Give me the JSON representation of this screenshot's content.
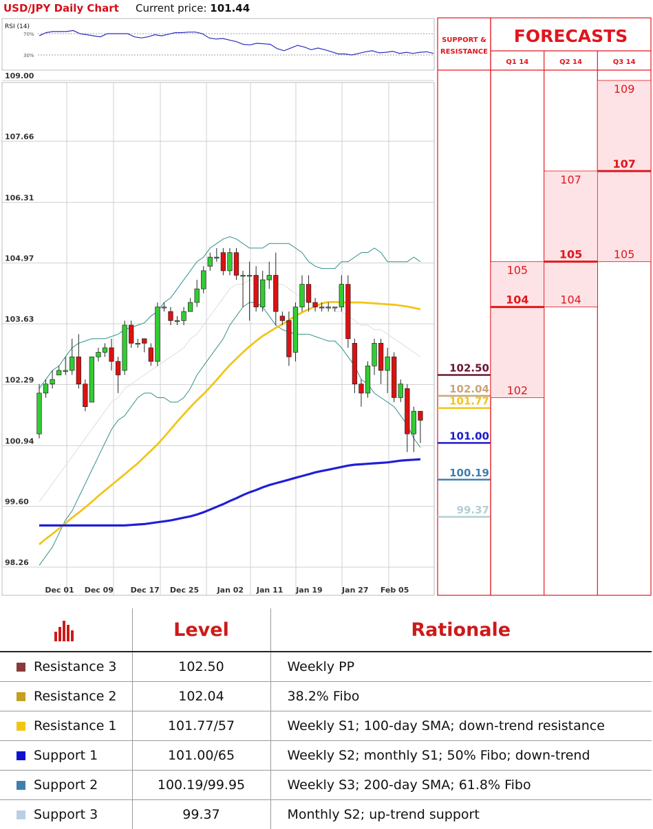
{
  "header": {
    "title": "USD/JPY Daily Chart",
    "price_label": "Current price:",
    "price_value": "101.44"
  },
  "rsi": {
    "label": "RSI (14)",
    "upper_label": "70%",
    "lower_label": "30%",
    "values": [
      66,
      72,
      74,
      74,
      74,
      76,
      70,
      68,
      66,
      64,
      70,
      70,
      70,
      70,
      64,
      62,
      64,
      68,
      66,
      69,
      72,
      72,
      73,
      73,
      70,
      62,
      60,
      61,
      58,
      55,
      50,
      49,
      52,
      51,
      50,
      42,
      38,
      43,
      48,
      45,
      40,
      43,
      40,
      36,
      32,
      32,
      30,
      33,
      36,
      38,
      34,
      35,
      37,
      33,
      35,
      33,
      35,
      36,
      33
    ]
  },
  "chart_data": {
    "type": "candlestick",
    "title": "USD/JPY Daily Chart",
    "y_ticks": [
      "109.00",
      "107.66",
      "106.31",
      "104.97",
      "103.63",
      "102.29",
      "100.94",
      "99.60",
      "98.26"
    ],
    "ylim": [
      98.26,
      109.0
    ],
    "x_ticks": [
      "Dec 01",
      "Dec 09",
      "Dec 17",
      "Dec 25",
      "Jan 02",
      "Jan 11",
      "Jan 19",
      "Jan 27",
      "Feb 05"
    ],
    "x_tick_index": [
      1,
      7,
      14,
      20,
      27,
      33,
      39,
      46,
      52
    ],
    "candles": [
      [
        101.2,
        102.1,
        102.3,
        101.1
      ],
      [
        102.1,
        102.3,
        102.4,
        102.0
      ],
      [
        102.3,
        102.4,
        102.6,
        102.2
      ],
      [
        102.5,
        102.6,
        102.7,
        102.5
      ],
      [
        102.6,
        102.6,
        102.9,
        102.5
      ],
      [
        102.6,
        102.9,
        103.3,
        102.5
      ],
      [
        102.9,
        102.3,
        103.4,
        102.2
      ],
      [
        102.3,
        101.8,
        102.4,
        101.7
      ],
      [
        101.9,
        102.9,
        102.9,
        101.9
      ],
      [
        102.9,
        103.0,
        103.1,
        102.8
      ],
      [
        103.0,
        103.1,
        103.2,
        102.9
      ],
      [
        103.1,
        102.8,
        103.3,
        102.6
      ],
      [
        102.8,
        102.5,
        102.9,
        102.1
      ],
      [
        102.6,
        103.6,
        103.7,
        102.5
      ],
      [
        103.6,
        103.2,
        103.7,
        103.1
      ],
      [
        103.2,
        103.2,
        103.3,
        103.1
      ],
      [
        103.3,
        103.2,
        103.3,
        103.0
      ],
      [
        103.1,
        102.8,
        103.2,
        102.7
      ],
      [
        102.8,
        104.0,
        104.1,
        102.7
      ],
      [
        104.0,
        104.0,
        104.1,
        103.9
      ],
      [
        103.9,
        103.7,
        104.0,
        103.6
      ],
      [
        103.7,
        103.7,
        103.8,
        103.6
      ],
      [
        103.7,
        103.9,
        104.0,
        103.6
      ],
      [
        103.9,
        104.1,
        104.2,
        103.9
      ],
      [
        104.1,
        104.4,
        104.6,
        104.0
      ],
      [
        104.4,
        104.8,
        104.9,
        104.3
      ],
      [
        104.9,
        105.1,
        105.2,
        104.8
      ],
      [
        105.1,
        105.1,
        105.3,
        105.0
      ],
      [
        105.2,
        104.8,
        105.3,
        104.7
      ],
      [
        104.8,
        105.2,
        105.3,
        104.7
      ],
      [
        105.2,
        104.7,
        105.3,
        104.6
      ],
      [
        104.7,
        104.7,
        104.8,
        104.0
      ],
      [
        104.7,
        104.7,
        105.0,
        103.7
      ],
      [
        104.7,
        104.0,
        104.9,
        103.9
      ],
      [
        104.0,
        104.6,
        104.8,
        103.9
      ],
      [
        104.6,
        104.7,
        105.0,
        104.4
      ],
      [
        104.7,
        103.9,
        105.2,
        103.6
      ],
      [
        103.8,
        103.7,
        103.9,
        103.6
      ],
      [
        103.7,
        102.9,
        103.9,
        102.7
      ],
      [
        103.0,
        104.0,
        104.1,
        102.8
      ],
      [
        104.0,
        104.5,
        104.7,
        103.9
      ],
      [
        104.5,
        104.1,
        104.7,
        103.9
      ],
      [
        104.1,
        104.0,
        104.2,
        103.9
      ],
      [
        104.0,
        104.0,
        104.1,
        103.9
      ],
      [
        104.0,
        104.0,
        104.1,
        103.9
      ],
      [
        104.0,
        104.0,
        104.0,
        103.9
      ],
      [
        104.0,
        104.5,
        104.7,
        103.9
      ],
      [
        104.5,
        103.3,
        104.7,
        103.1
      ],
      [
        103.2,
        102.3,
        103.3,
        102.1
      ],
      [
        102.3,
        102.1,
        102.4,
        101.8
      ],
      [
        102.1,
        102.7,
        102.8,
        102.0
      ],
      [
        102.7,
        103.2,
        103.3,
        102.5
      ],
      [
        103.2,
        102.6,
        103.3,
        102.3
      ],
      [
        102.6,
        102.9,
        103.1,
        102.1
      ],
      [
        102.9,
        102.0,
        103.0,
        101.9
      ],
      [
        102.0,
        102.3,
        102.4,
        101.9
      ],
      [
        102.2,
        101.2,
        102.3,
        100.8
      ],
      [
        101.2,
        101.7,
        101.8,
        100.8
      ],
      [
        101.7,
        101.5,
        101.7,
        101.0
      ]
    ],
    "series": [
      {
        "name": "",
        "color": "#f2c418",
        "values": [
          98.76,
          98.88,
          98.99,
          99.11,
          99.23,
          99.35,
          99.46,
          99.58,
          99.7,
          99.83,
          99.95,
          100.07,
          100.19,
          100.31,
          100.43,
          100.55,
          100.69,
          100.83,
          100.97,
          101.13,
          101.3,
          101.47,
          101.63,
          101.79,
          101.94,
          102.08,
          102.23,
          102.39,
          102.56,
          102.72,
          102.86,
          103.0,
          103.13,
          103.25,
          103.36,
          103.45,
          103.54,
          103.62,
          103.71,
          103.8,
          103.88,
          103.95,
          104.01,
          104.08,
          104.11,
          104.11,
          104.1,
          104.1,
          104.1,
          104.1,
          104.09,
          104.08,
          104.07,
          104.06,
          104.05,
          104.03,
          104.01,
          103.98,
          103.95
        ]
      },
      {
        "name": "",
        "color": "#1f1fd6",
        "values": [
          99.18,
          99.18,
          99.18,
          99.18,
          99.18,
          99.18,
          99.18,
          99.18,
          99.18,
          99.18,
          99.18,
          99.18,
          99.18,
          99.18,
          99.19,
          99.2,
          99.21,
          99.23,
          99.25,
          99.27,
          99.29,
          99.32,
          99.35,
          99.38,
          99.42,
          99.47,
          99.53,
          99.59,
          99.65,
          99.72,
          99.78,
          99.85,
          99.91,
          99.96,
          100.02,
          100.07,
          100.11,
          100.15,
          100.19,
          100.23,
          100.27,
          100.31,
          100.35,
          100.38,
          100.41,
          100.44,
          100.47,
          100.5,
          100.52,
          100.53,
          100.54,
          100.55,
          100.56,
          100.57,
          100.59,
          100.61,
          100.62,
          100.63,
          100.64
        ]
      },
      {
        "name": "",
        "color": "#2f8f8a",
        "values": [
          102.2,
          102.4,
          102.6,
          102.7,
          102.9,
          103.1,
          103.2,
          103.25,
          103.3,
          103.3,
          103.3,
          103.35,
          103.4,
          103.5,
          103.55,
          103.6,
          103.65,
          103.8,
          103.9,
          104.1,
          104.2,
          104.4,
          104.6,
          104.8,
          105.0,
          105.1,
          105.3,
          105.4,
          105.5,
          105.55,
          105.5,
          105.4,
          105.3,
          105.3,
          105.3,
          105.4,
          105.4,
          105.4,
          105.4,
          105.3,
          105.2,
          105.0,
          104.9,
          104.85,
          104.85,
          104.85,
          105.0,
          105.0,
          105.1,
          105.2,
          105.2,
          105.3,
          105.2,
          105.0,
          105.0,
          105.0,
          105.0,
          105.1,
          105.0
        ]
      },
      {
        "name": "",
        "color": "#2f8f8a",
        "values": [
          98.3,
          98.5,
          98.7,
          99.0,
          99.3,
          99.5,
          99.8,
          100.1,
          100.4,
          100.7,
          101.0,
          101.3,
          101.5,
          101.6,
          101.8,
          102.0,
          102.1,
          102.1,
          102.0,
          102.0,
          101.9,
          101.9,
          102.0,
          102.2,
          102.5,
          102.7,
          102.9,
          103.1,
          103.3,
          103.6,
          103.8,
          104.0,
          104.1,
          104.1,
          104.0,
          103.8,
          103.6,
          103.5,
          103.45,
          103.4,
          103.4,
          103.4,
          103.35,
          103.3,
          103.25,
          103.25,
          103.1,
          102.9,
          102.7,
          102.4,
          102.3,
          102.1,
          102.0,
          101.9,
          101.8,
          101.6,
          101.4,
          101.1,
          100.9
        ]
      },
      {
        "name": "",
        "color": "#dddddd",
        "values": [
          99.7,
          99.9,
          100.1,
          100.3,
          100.5,
          100.7,
          100.9,
          101.1,
          101.3,
          101.5,
          101.7,
          101.9,
          102.0,
          102.2,
          102.3,
          102.4,
          102.5,
          102.6,
          102.7,
          102.8,
          102.9,
          103.0,
          103.1,
          103.3,
          103.4,
          103.6,
          103.8,
          104.0,
          104.2,
          104.4,
          104.5,
          104.5,
          104.6,
          104.6,
          104.6,
          104.6,
          104.5,
          104.5,
          104.4,
          104.3,
          104.2,
          104.1,
          104.1,
          104.0,
          104.0,
          103.9,
          103.9,
          103.8,
          103.7,
          103.6,
          103.6,
          103.5,
          103.5,
          103.4,
          103.3,
          103.2,
          103.1,
          103.0,
          102.9
        ]
      }
    ],
    "levels": [
      {
        "label": "102.50",
        "value": 102.5,
        "color": "#6a1535"
      },
      {
        "label": "102.04",
        "value": 102.04,
        "color": "#c8a57a"
      },
      {
        "label": "101.77",
        "value": 101.77,
        "color": "#f2c418"
      },
      {
        "label": "101.00",
        "value": 101.0,
        "color": "#1c1cc8"
      },
      {
        "label": "100.19",
        "value": 100.19,
        "color": "#3f7fb0"
      },
      {
        "label": "99.37",
        "value": 99.37,
        "color": "#b2cfd4"
      }
    ]
  },
  "support_resistance_header": [
    "SUPPORT &",
    "RESISTANCE"
  ],
  "forecasts": {
    "title": "FORECASTS",
    "quarters": [
      {
        "label": "Q1 14",
        "min_label": "102",
        "mid_label": "104",
        "max_label": "105",
        "min": 102.0,
        "mid": 104.0,
        "max": 105.0
      },
      {
        "label": "Q2 14",
        "min_label": "104",
        "mid_label": "105",
        "max_label": "107",
        "min": 104.0,
        "mid": 105.0,
        "max": 107.0
      },
      {
        "label": "Q3 14",
        "min_label": "105",
        "mid_label": "107",
        "max_label": "109",
        "min": 105.0,
        "mid": 107.0,
        "max": 109.0
      }
    ]
  },
  "table": {
    "headers": {
      "level": "Level",
      "rationale": "Rationale"
    },
    "rows": [
      {
        "name": "Resistance 3",
        "level": "102.50",
        "rationale": "Weekly PP",
        "color": "#8b3a3a"
      },
      {
        "name": "Resistance 2",
        "level": "102.04",
        "rationale": "38.2% Fibo",
        "color": "#c4a020"
      },
      {
        "name": "Resistance 1",
        "level": "101.77/57",
        "rationale": "Weekly S1; 100-day SMA; down-trend resistance",
        "color": "#f2c418"
      },
      {
        "name": "Support 1",
        "level": "101.00/65",
        "rationale": "Weekly S2; monthly S1; 50% Fibo; down-trend",
        "color": "#1010d0"
      },
      {
        "name": "Support 2",
        "level": "100.19/99.95",
        "rationale": "Weekly S3; 200-day SMA; 61.8% Fibo",
        "color": "#3f7fb0"
      },
      {
        "name": "Support 3",
        "level": "99.37",
        "rationale": "Monthly S2; up-trend support",
        "color": "#b9cfe4"
      }
    ]
  },
  "colors": {
    "bull": "#33cc33",
    "bear": "#dd1111",
    "forecast_red": "#e0161e",
    "forecast_fill": "#fde3e5"
  }
}
